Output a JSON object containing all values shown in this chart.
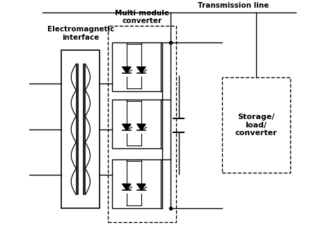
{
  "title": "",
  "bg_color": "#ffffff",
  "transmission_line_label": "Transmission line",
  "em_interface_label": "Electromagnetic\ninterface",
  "multi_module_label": "Multi-module\nconverter",
  "storage_label": "Storage/\nload/\nconverter",
  "fig_width": 4.74,
  "fig_height": 3.59,
  "dpi": 100
}
